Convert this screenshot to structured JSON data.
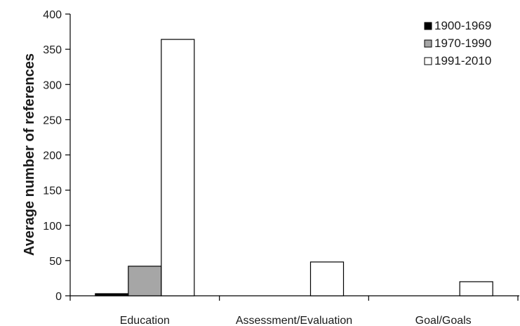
{
  "chart_data": {
    "type": "bar",
    "title": "",
    "xlabel": "",
    "ylabel": "Average number of references",
    "ylim": [
      0,
      400
    ],
    "yticks": [
      0,
      50,
      100,
      150,
      200,
      250,
      300,
      350,
      400
    ],
    "categories": [
      "Education",
      "Assessment/Evaluation",
      "Goal/Goals"
    ],
    "series": [
      {
        "name": "1900-1969",
        "color": "#000000",
        "values": [
          3,
          0,
          0
        ]
      },
      {
        "name": "1970-1990",
        "color": "#a6a6a6",
        "values": [
          42,
          0,
          0
        ]
      },
      {
        "name": "1991-2010",
        "color": "#ffffff",
        "values": [
          364,
          48,
          20
        ]
      }
    ],
    "legend_position": "top-right",
    "grid": false
  }
}
